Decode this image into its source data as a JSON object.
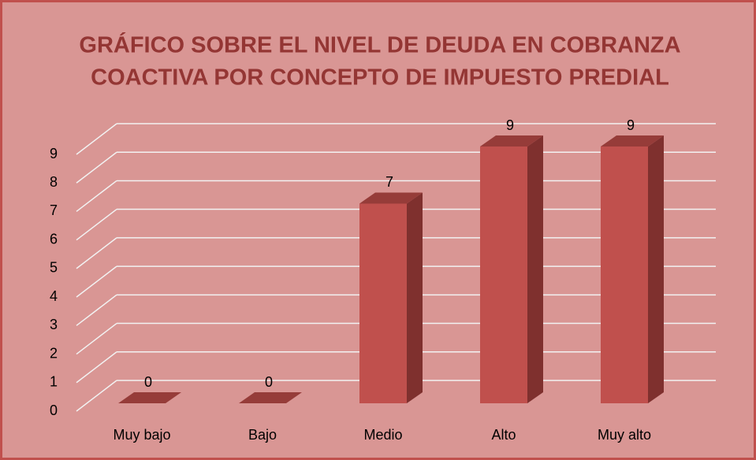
{
  "chart_data": {
    "type": "bar3d",
    "title": [
      "GRÁFICO  SOBRE EL NIVEL DE DEUDA EN COBRANZA",
      "COACTIVA POR CONCEPTO DE IMPUESTO PREDIAL"
    ],
    "categories": [
      "Muy bajo",
      "Bajo",
      "Medio",
      "Alto",
      "Muy alto"
    ],
    "values": [
      0,
      0,
      7,
      9,
      9
    ],
    "color": "#c0504d",
    "ylim": [
      0,
      9
    ],
    "yticks": [
      0,
      1,
      2,
      3,
      4,
      5,
      6,
      7,
      8,
      9
    ],
    "grid": true
  }
}
